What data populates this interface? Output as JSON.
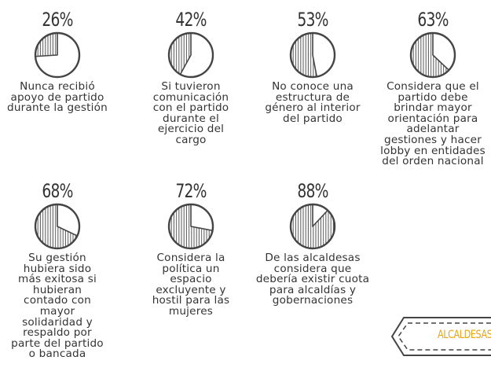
{
  "chart_data": [
    {
      "type": "pie",
      "value": 26,
      "label": "26%",
      "description": "Nunca recibió apoyo de partido durante la gestión"
    },
    {
      "type": "pie",
      "value": 42,
      "label": "42%",
      "description": "Si tuvieron comunicación con el partido durante el ejercicio del cargo"
    },
    {
      "type": "pie",
      "value": 53,
      "label": "53%",
      "description": "No conoce una estructura de género al interior del partido"
    },
    {
      "type": "pie",
      "value": 63,
      "label": "63%",
      "description": "Considera que el partido debe brindar mayor orientación para adelantar gestiones y hacer lobby en entidades del orden nacional"
    },
    {
      "type": "pie",
      "value": 68,
      "label": "68%",
      "description": "Su gestión hubiera sido más exitosa si hubieran contado con mayor solidaridad y respaldo por parte del partido o bancada"
    },
    {
      "type": "pie",
      "value": 72,
      "label": "72%",
      "description": "Considera la política un espacio excluyente y hostil para las mujeres"
    },
    {
      "type": "pie",
      "value": 88,
      "label": "88%",
      "description": "De las alcaldesas considera que debería existir cuota para alcaldías y gobernaciones"
    }
  ],
  "badge": {
    "label": "ALCALDESAS",
    "color": "#e6a417"
  }
}
